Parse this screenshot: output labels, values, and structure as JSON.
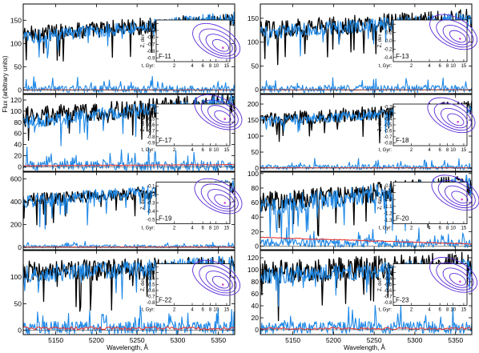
{
  "figure": {
    "y_axis_label": "Flux (arbitrary units)",
    "x_axis_label": "Wavelength, Å"
  },
  "colors": {
    "observed": "#000000",
    "model": "#1e88e5",
    "residual": "#1e88e5",
    "residual_fit": "#e53935",
    "contour": "#5b2bd8",
    "contour_marker": "#d040d0"
  },
  "chart_data": [
    {
      "type": "line",
      "panel": "F-11",
      "x_range": [
        5110,
        5370
      ],
      "xticks": [
        5150,
        5200,
        5250,
        5300,
        5350
      ],
      "ylim": [
        -8,
        185
      ],
      "yticks": [
        0,
        50,
        100,
        150
      ],
      "series": [
        {
          "id": "observed",
          "start": 120,
          "end": 150,
          "noise": 18
        },
        {
          "id": "model",
          "start": 112,
          "end": 155,
          "noise": 14
        },
        {
          "id": "residual",
          "start": 2,
          "end": 2,
          "noise": 8
        },
        {
          "id": "residual_fit",
          "start": 0,
          "end": 0,
          "noise": 0.5
        }
      ],
      "inset": {
        "label": "F-11",
        "xlabel": "t, Gyr:",
        "ylabel": "Z, dex",
        "xticks": [
          "2",
          "4",
          "6",
          "8",
          "10",
          "15"
        ],
        "yticks": [
          "-0.4",
          "-0.5",
          "-0.6",
          "-0.7",
          "-0.8",
          "-0.9"
        ],
        "ylim": [
          -0.95,
          -0.35
        ],
        "best_fit_age": 13,
        "best_fit_z": -0.75
      }
    },
    {
      "type": "line",
      "panel": "F-13",
      "x_range": [
        5110,
        5370
      ],
      "xticks": [
        5150,
        5200,
        5250,
        5300,
        5350
      ],
      "ylim": [
        -8,
        180
      ],
      "yticks": [
        0,
        50,
        100,
        150
      ],
      "series": [
        {
          "id": "observed",
          "start": 125,
          "end": 150,
          "noise": 20
        },
        {
          "id": "model",
          "start": 120,
          "end": 150,
          "noise": 14
        },
        {
          "id": "residual",
          "start": 2,
          "end": 2,
          "noise": 8
        },
        {
          "id": "residual_fit",
          "start": 0,
          "end": 0,
          "noise": 0.5
        }
      ],
      "inset": {
        "label": "F-13",
        "xlabel": "t, Gyr:",
        "ylabel": "Z, dex",
        "xticks": [
          "2",
          "4",
          "6",
          "8",
          "10",
          "15"
        ],
        "yticks": [
          "0.4",
          "0.2",
          "0.0",
          "-0.2",
          "-0.4"
        ],
        "ylim": [
          -0.5,
          0.5
        ],
        "best_fit_age": 13,
        "best_fit_z": 0.05
      }
    },
    {
      "type": "line",
      "panel": "F-17",
      "x_range": [
        5110,
        5370
      ],
      "xticks": [
        5150,
        5200,
        5250,
        5300,
        5350
      ],
      "ylim": [
        -8,
        130
      ],
      "yticks": [
        0,
        20,
        40,
        60,
        80,
        100,
        120
      ],
      "series": [
        {
          "id": "observed",
          "start": 90,
          "end": 115,
          "noise": 18
        },
        {
          "id": "model",
          "start": 80,
          "end": 120,
          "noise": 12
        },
        {
          "id": "residual",
          "start": 2,
          "end": 2,
          "noise": 9
        },
        {
          "id": "residual_fit",
          "start": 2,
          "end": 4,
          "noise": 0.5
        }
      ],
      "inset": {
        "label": "F-17",
        "xlabel": "t, Gyr:",
        "ylabel": "Z, dex",
        "xticks": [
          "2",
          "4",
          "6",
          "8",
          "10",
          "15"
        ],
        "yticks": [
          "-0.3",
          "-0.4",
          "-0.5",
          "-0.6",
          "-0.7",
          "-0.8",
          "-0.9"
        ],
        "ylim": [
          -0.95,
          -0.25
        ],
        "best_fit_age": 14,
        "best_fit_z": -0.5
      }
    },
    {
      "type": "line",
      "panel": "F-18",
      "x_range": [
        5110,
        5370
      ],
      "xticks": [
        5150,
        5200,
        5250,
        5300,
        5350
      ],
      "ylim": [
        -10,
        230
      ],
      "yticks": [
        0,
        50,
        100,
        150,
        200
      ],
      "series": [
        {
          "id": "observed",
          "start": 150,
          "end": 190,
          "noise": 22
        },
        {
          "id": "model",
          "start": 145,
          "end": 185,
          "noise": 16
        },
        {
          "id": "residual",
          "start": 3,
          "end": 3,
          "noise": 8
        },
        {
          "id": "residual_fit",
          "start": 1,
          "end": 1,
          "noise": 0.5
        }
      ],
      "inset": {
        "label": "F-18",
        "xlabel": "t, Gyr:",
        "ylabel": "Z, dex",
        "xticks": [
          "2",
          "4",
          "6",
          "8",
          "10",
          "15"
        ],
        "yticks": [
          "-0.2",
          "-0.3",
          "-0.4",
          "-0.5",
          "-0.6",
          "-0.7",
          "-0.8"
        ],
        "ylim": [
          -0.85,
          -0.15
        ],
        "best_fit_age": 12,
        "best_fit_z": -0.45
      }
    },
    {
      "type": "line",
      "panel": "F-19",
      "x_range": [
        5110,
        5370
      ],
      "xticks": [
        5150,
        5200,
        5250,
        5300,
        5350
      ],
      "ylim": [
        -20,
        660
      ],
      "yticks": [
        0,
        200,
        400,
        600
      ],
      "series": [
        {
          "id": "observed",
          "start": 420,
          "end": 520,
          "noise": 55
        },
        {
          "id": "model",
          "start": 400,
          "end": 540,
          "noise": 60
        },
        {
          "id": "residual",
          "start": 10,
          "end": 10,
          "noise": 14
        },
        {
          "id": "residual_fit",
          "start": 4,
          "end": 4,
          "noise": 1
        }
      ],
      "inset": {
        "label": "F-19",
        "xlabel": "t, Gyr:",
        "ylabel": "Z, dex",
        "xticks": [
          "2",
          "4",
          "6",
          "8",
          "10",
          "15"
        ],
        "yticks": [
          "-0.1",
          "-0.2",
          "-0.3",
          "-0.4",
          "-0.5"
        ],
        "ylim": [
          -0.55,
          -0.05
        ],
        "best_fit_age": 14,
        "best_fit_z": -0.3
      }
    },
    {
      "type": "line",
      "panel": "F-20",
      "x_range": [
        5110,
        5370
      ],
      "xticks": [
        5150,
        5200,
        5250,
        5300,
        5350
      ],
      "ylim": [
        -5,
        102
      ],
      "yticks": [
        0,
        20,
        40,
        60,
        80,
        100
      ],
      "series": [
        {
          "id": "observed",
          "start": 60,
          "end": 85,
          "noise": 14
        },
        {
          "id": "model",
          "start": 55,
          "end": 85,
          "noise": 14
        },
        {
          "id": "residual",
          "start": 5,
          "end": 3,
          "noise": 6
        },
        {
          "id": "residual_fit",
          "start": 12,
          "end": 3,
          "noise": 0.5
        }
      ],
      "inset": {
        "label": "F-20",
        "xlabel": "t, Gyr:",
        "ylabel": "Z, dex",
        "xticks": [
          "2",
          "4",
          "6",
          "8",
          "10",
          "15"
        ],
        "yticks": [
          "-0.8",
          "-0.9",
          "-1.0",
          "-1.1",
          "-1.2",
          "-1.3"
        ],
        "ylim": [
          -1.35,
          -0.75
        ],
        "best_fit_age": 14,
        "best_fit_z": -1.0
      }
    },
    {
      "type": "line",
      "panel": "F-22",
      "x_range": [
        5110,
        5370
      ],
      "xticks": [
        5150,
        5200,
        5250,
        5300,
        5350
      ],
      "ylim": [
        -8,
        150
      ],
      "yticks": [
        0,
        50,
        100
      ],
      "series": [
        {
          "id": "observed",
          "start": 110,
          "end": 120,
          "noise": 20
        },
        {
          "id": "model",
          "start": 105,
          "end": 125,
          "noise": 16
        },
        {
          "id": "residual",
          "start": 5,
          "end": 5,
          "noise": 12
        },
        {
          "id": "residual_fit",
          "start": 4,
          "end": 4,
          "noise": 3
        }
      ],
      "inset": {
        "label": "F-22",
        "xlabel": "t, Gyr:",
        "ylabel": "Z, dex",
        "xticks": [
          "2",
          "4",
          "6",
          "8",
          "10",
          "15"
        ],
        "yticks": [
          "-0.2",
          "-0.3",
          "-0.4",
          "-0.5",
          "-0.6",
          "-0.7",
          "-0.8"
        ],
        "ylim": [
          -0.85,
          -0.15
        ],
        "best_fit_age": 13,
        "best_fit_z": -0.5
      }
    },
    {
      "type": "line",
      "panel": "F-23",
      "x_range": [
        5110,
        5370
      ],
      "xticks": [
        5150,
        5200,
        5250,
        5300,
        5350
      ],
      "ylim": [
        -8,
        132
      ],
      "yticks": [
        0,
        20,
        40,
        60,
        80,
        100,
        120
      ],
      "series": [
        {
          "id": "observed",
          "start": 95,
          "end": 110,
          "noise": 20
        },
        {
          "id": "model",
          "start": 90,
          "end": 105,
          "noise": 14
        },
        {
          "id": "residual",
          "start": 4,
          "end": 4,
          "noise": 10
        },
        {
          "id": "residual_fit",
          "start": 2,
          "end": 2,
          "noise": 2
        }
      ],
      "inset": {
        "label": "F-23",
        "xlabel": "t, Gyr:",
        "ylabel": "Z, dex",
        "xticks": [
          "2",
          "4",
          "6",
          "8",
          "10",
          "15"
        ],
        "yticks": [
          "-0.2",
          "-0.3",
          "-0.4",
          "-0.5",
          "-0.6",
          "-0.7",
          "-0.8"
        ],
        "ylim": [
          -0.85,
          -0.15
        ],
        "best_fit_age": 13,
        "best_fit_z": -0.45
      }
    }
  ]
}
